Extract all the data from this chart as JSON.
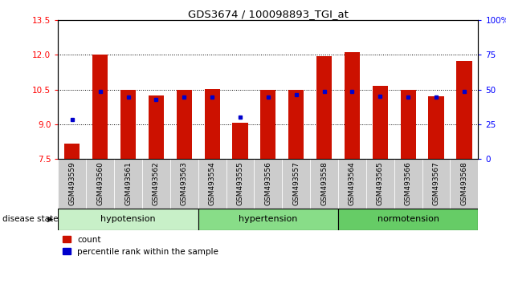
{
  "title": "GDS3674 / 100098893_TGI_at",
  "samples": [
    "GSM493559",
    "GSM493560",
    "GSM493561",
    "GSM493562",
    "GSM493563",
    "GSM493554",
    "GSM493555",
    "GSM493556",
    "GSM493557",
    "GSM493558",
    "GSM493564",
    "GSM493565",
    "GSM493566",
    "GSM493567",
    "GSM493568"
  ],
  "count_values": [
    8.15,
    12.02,
    10.47,
    10.25,
    10.47,
    10.52,
    9.07,
    10.47,
    10.47,
    11.93,
    12.12,
    10.65,
    10.47,
    10.22,
    11.72
  ],
  "percentile_values": [
    9.2,
    10.42,
    10.18,
    10.07,
    10.18,
    10.18,
    9.3,
    10.18,
    10.28,
    10.42,
    10.42,
    10.22,
    10.18,
    10.18,
    10.4
  ],
  "groups": [
    {
      "label": "hypotension",
      "start": 0,
      "end": 5,
      "color": "#c8f0c8"
    },
    {
      "label": "hypertension",
      "start": 5,
      "end": 10,
      "color": "#88dd88"
    },
    {
      "label": "normotension",
      "start": 10,
      "end": 15,
      "color": "#66cc66"
    }
  ],
  "ylim": [
    7.5,
    13.5
  ],
  "yticks": [
    7.5,
    9.0,
    10.5,
    12.0,
    13.5
  ],
  "y2ticks": [
    0,
    25,
    50,
    75,
    100
  ],
  "bar_color": "#cc1100",
  "dot_color": "#0000cc",
  "background_color": "#ffffff",
  "grid_color": "#000000",
  "bar_width": 0.55,
  "cell_bg": "#cccccc"
}
